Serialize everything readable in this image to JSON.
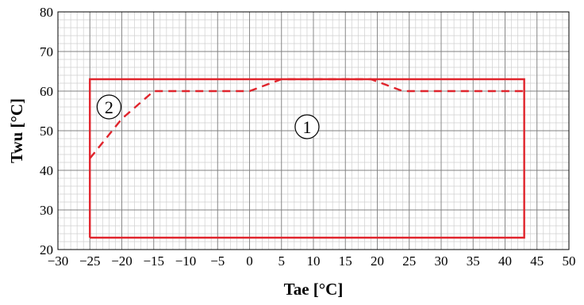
{
  "chart_data": {
    "type": "line",
    "xlabel": "Tae [°C]",
    "ylabel": "Twu [°C]",
    "xlim": [
      -30,
      50
    ],
    "ylim": [
      20,
      80
    ],
    "x_ticks": [
      -30,
      -25,
      -20,
      -15,
      -10,
      -5,
      0,
      5,
      10,
      15,
      20,
      25,
      30,
      35,
      40,
      45,
      50
    ],
    "x_tick_labels": [
      "−30",
      "−25",
      "−20",
      "−15",
      "−10",
      "−5",
      "0",
      "5",
      "10",
      "15",
      "20",
      "25",
      "30",
      "35",
      "40",
      "45",
      "50"
    ],
    "y_ticks": [
      20,
      30,
      40,
      50,
      60,
      70,
      80
    ],
    "y_tick_labels": [
      "20",
      "30",
      "40",
      "50",
      "60",
      "70",
      "80"
    ],
    "minor_x_step": 1,
    "minor_y_step": 2,
    "grid": true,
    "series": [
      {
        "style": "solid",
        "color": "#e0242c",
        "points": [
          [
            -25,
            23
          ],
          [
            43,
            23
          ],
          [
            43,
            63
          ],
          [
            -25,
            63
          ],
          [
            -25,
            23
          ]
        ]
      },
      {
        "style": "dashed",
        "color": "#e0242c",
        "points": [
          [
            -25,
            43
          ],
          [
            -20,
            53
          ],
          [
            -15,
            60
          ],
          [
            0,
            60
          ],
          [
            5,
            63
          ],
          [
            19,
            63
          ],
          [
            24,
            60
          ],
          [
            43,
            60
          ]
        ]
      }
    ],
    "annotations": [
      {
        "text": "1",
        "x": 9,
        "y": 51
      },
      {
        "text": "2",
        "x": -22,
        "y": 56
      }
    ]
  }
}
